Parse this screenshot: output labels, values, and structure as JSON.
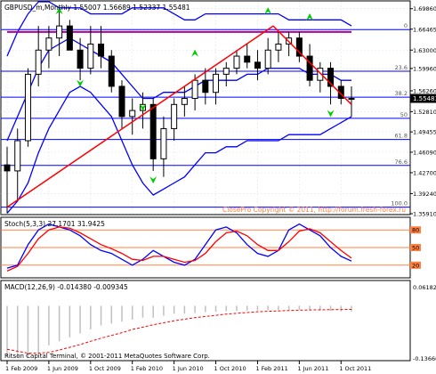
{
  "window": {
    "symbol_header": "GBPUSD_m,Monthly  1.55007 1.56689 1.52337 1.55481",
    "price_badge": "1.55481",
    "watermark": "ClosePro Copyright © 2011, http://forum.fresh-forex.ru",
    "footer": "Ritson Capital Terminal, © 2001-2011 MetaQuotes Software Corp.",
    "stoch_label": "Stoch(5,3,3) 27.1701 31.9425",
    "macd_label": "MACD(12,26,9) -0.014380 -0.009345",
    "macd_top_value": "0.061823",
    "macd_bottom_value": "-0.13660"
  },
  "colors": {
    "candle": "#000000",
    "bollinger": "#0000ff",
    "trendline": "#ff0000",
    "ma": "#aa00aa",
    "fib": "#0000ff",
    "fractal": "#00cc00",
    "stoch_main": "#0000ff",
    "stoch_signal": "#ff0000",
    "stoch_levels": "#ff8040",
    "macd_hist": "#c0c0c0",
    "macd_signal": "#ff0000"
  },
  "chart_data": [
    {
      "type": "candlestick",
      "ylim": [
        1.3591,
        1.71
      ],
      "y_ticks": [
        "1.69860",
        "1.66465",
        "1.63000",
        "1.59960",
        "1.56260",
        "1.52810",
        "1.49455",
        "1.46090",
        "1.42700",
        "1.39240",
        "1.35910"
      ],
      "x_ticks": [
        "1 Feb 2009",
        "1 Jun 2009",
        "1 Oct 2009",
        "1 Feb 2010",
        "1 Jun 2010",
        "1 Oct 2010",
        "1 Feb 2011",
        "1 Jun 2011",
        "1 Oct 2011"
      ],
      "fib_levels": [
        {
          "label": "0",
          "value": 1.664
        },
        {
          "label": "23.6",
          "value": 1.595
        },
        {
          "label": "38.2",
          "value": 1.552
        },
        {
          "label": "50",
          "value": 1.517
        },
        {
          "label": "61.8",
          "value": 1.482
        },
        {
          "label": "76.6",
          "value": 1.439
        },
        {
          "label": "100.0",
          "value": 1.37
        }
      ],
      "candles": [
        {
          "o": 1.44,
          "h": 1.47,
          "l": 1.36,
          "c": 1.43
        },
        {
          "o": 1.43,
          "h": 1.5,
          "l": 1.38,
          "c": 1.48
        },
        {
          "o": 1.48,
          "h": 1.6,
          "l": 1.47,
          "c": 1.59
        },
        {
          "o": 1.59,
          "h": 1.67,
          "l": 1.57,
          "c": 1.63
        },
        {
          "o": 1.63,
          "h": 1.67,
          "l": 1.6,
          "c": 1.65
        },
        {
          "o": 1.65,
          "h": 1.7,
          "l": 1.62,
          "c": 1.67
        },
        {
          "o": 1.67,
          "h": 1.68,
          "l": 1.63,
          "c": 1.63
        },
        {
          "o": 1.63,
          "h": 1.65,
          "l": 1.58,
          "c": 1.6
        },
        {
          "o": 1.6,
          "h": 1.67,
          "l": 1.59,
          "c": 1.64
        },
        {
          "o": 1.64,
          "h": 1.67,
          "l": 1.6,
          "c": 1.62
        },
        {
          "o": 1.62,
          "h": 1.63,
          "l": 1.56,
          "c": 1.57
        },
        {
          "o": 1.57,
          "h": 1.58,
          "l": 1.5,
          "c": 1.52
        },
        {
          "o": 1.52,
          "h": 1.55,
          "l": 1.49,
          "c": 1.53
        },
        {
          "o": 1.53,
          "h": 1.56,
          "l": 1.5,
          "c": 1.54
        },
        {
          "o": 1.54,
          "h": 1.55,
          "l": 1.43,
          "c": 1.45
        },
        {
          "o": 1.45,
          "h": 1.52,
          "l": 1.42,
          "c": 1.5
        },
        {
          "o": 1.5,
          "h": 1.55,
          "l": 1.48,
          "c": 1.54
        },
        {
          "o": 1.54,
          "h": 1.57,
          "l": 1.52,
          "c": 1.55
        },
        {
          "o": 1.55,
          "h": 1.59,
          "l": 1.53,
          "c": 1.58
        },
        {
          "o": 1.58,
          "h": 1.6,
          "l": 1.54,
          "c": 1.56
        },
        {
          "o": 1.56,
          "h": 1.6,
          "l": 1.54,
          "c": 1.59
        },
        {
          "o": 1.59,
          "h": 1.61,
          "l": 1.57,
          "c": 1.6
        },
        {
          "o": 1.6,
          "h": 1.63,
          "l": 1.59,
          "c": 1.62
        },
        {
          "o": 1.62,
          "h": 1.64,
          "l": 1.6,
          "c": 1.61
        },
        {
          "o": 1.61,
          "h": 1.63,
          "l": 1.58,
          "c": 1.6
        },
        {
          "o": 1.6,
          "h": 1.65,
          "l": 1.59,
          "c": 1.63
        },
        {
          "o": 1.63,
          "h": 1.66,
          "l": 1.61,
          "c": 1.64
        },
        {
          "o": 1.64,
          "h": 1.66,
          "l": 1.62,
          "c": 1.65
        },
        {
          "o": 1.65,
          "h": 1.66,
          "l": 1.61,
          "c": 1.62
        },
        {
          "o": 1.62,
          "h": 1.64,
          "l": 1.57,
          "c": 1.58
        },
        {
          "o": 1.58,
          "h": 1.61,
          "l": 1.56,
          "c": 1.6
        },
        {
          "o": 1.6,
          "h": 1.61,
          "l": 1.54,
          "c": 1.57
        },
        {
          "o": 1.57,
          "h": 1.58,
          "l": 1.54,
          "c": 1.55
        },
        {
          "o": 1.55,
          "h": 1.57,
          "l": 1.52,
          "c": 1.55
        }
      ],
      "bollinger_upper": [
        1.62,
        1.66,
        1.69,
        1.71,
        1.71,
        1.7,
        1.7,
        1.7,
        1.69,
        1.69,
        1.69,
        1.69,
        1.7,
        1.7,
        1.7,
        1.7,
        1.69,
        1.68,
        1.68,
        1.69,
        1.69,
        1.69,
        1.69,
        1.69,
        1.69,
        1.69,
        1.69,
        1.68,
        1.68,
        1.68,
        1.68,
        1.68,
        1.68,
        1.67
      ],
      "bollinger_middle": [
        1.48,
        1.52,
        1.56,
        1.6,
        1.63,
        1.64,
        1.65,
        1.64,
        1.63,
        1.62,
        1.61,
        1.59,
        1.57,
        1.55,
        1.55,
        1.56,
        1.56,
        1.56,
        1.57,
        1.58,
        1.58,
        1.58,
        1.58,
        1.59,
        1.59,
        1.6,
        1.6,
        1.6,
        1.6,
        1.59,
        1.59,
        1.59,
        1.58,
        1.58
      ],
      "bollinger_lower": [
        1.36,
        1.38,
        1.41,
        1.46,
        1.5,
        1.53,
        1.56,
        1.57,
        1.56,
        1.54,
        1.52,
        1.48,
        1.44,
        1.41,
        1.39,
        1.4,
        1.41,
        1.42,
        1.44,
        1.46,
        1.46,
        1.47,
        1.47,
        1.48,
        1.48,
        1.48,
        1.48,
        1.49,
        1.49,
        1.49,
        1.49,
        1.5,
        1.51,
        1.52
      ],
      "ma_line": [
        1.66,
        1.66,
        1.66,
        1.66,
        1.66,
        1.66,
        1.66,
        1.66,
        1.66,
        1.66,
        1.66,
        1.66,
        1.66,
        1.66,
        1.66,
        1.66,
        1.66,
        1.66,
        1.66,
        1.66,
        1.66,
        1.66,
        1.66,
        1.66,
        1.66,
        1.66,
        1.66,
        1.66,
        1.66,
        1.66,
        1.66,
        1.66,
        1.66,
        1.66
      ],
      "trendlines": [
        {
          "from": {
            "i": 0,
            "v": 1.37
          },
          "to": {
            "i": 25.5,
            "v": 1.67
          }
        },
        {
          "from": {
            "i": 25.5,
            "v": 1.67
          },
          "to": {
            "i": 33,
            "v": 1.54
          }
        }
      ],
      "fractals_up": [
        {
          "i": 5,
          "v": 1.695
        },
        {
          "i": 18,
          "v": 1.625
        },
        {
          "i": 25,
          "v": 1.695
        },
        {
          "i": 29,
          "v": 1.685
        }
      ],
      "fractals_down": [
        {
          "i": 7,
          "v": 1.575
        },
        {
          "i": 13,
          "v": 1.535
        },
        {
          "i": 14,
          "v": 1.415
        },
        {
          "i": 31,
          "v": 1.525
        }
      ]
    },
    {
      "type": "line",
      "name": "Stoch(5,3,3)",
      "ylim": [
        0,
        100
      ],
      "levels": [
        80,
        50,
        20
      ],
      "main": [
        15,
        20,
        55,
        80,
        90,
        85,
        80,
        70,
        55,
        45,
        40,
        30,
        20,
        30,
        45,
        35,
        25,
        20,
        30,
        55,
        80,
        85,
        75,
        55,
        40,
        35,
        45,
        80,
        90,
        80,
        70,
        50,
        35,
        27
      ],
      "signal": [
        10,
        18,
        40,
        65,
        80,
        85,
        83,
        75,
        65,
        55,
        48,
        40,
        30,
        28,
        35,
        35,
        30,
        25,
        28,
        40,
        60,
        75,
        78,
        70,
        55,
        45,
        45,
        60,
        78,
        82,
        75,
        60,
        45,
        32
      ]
    },
    {
      "type": "bar",
      "name": "MACD(12,26,9)",
      "ylim": [
        -0.1366,
        0.061823
      ],
      "histogram": [
        -0.13,
        -0.13,
        -0.13,
        -0.12,
        -0.1,
        -0.09,
        -0.08,
        -0.07,
        -0.06,
        -0.05,
        -0.045,
        -0.04,
        -0.035,
        -0.03,
        -0.03,
        -0.025,
        -0.02,
        -0.02,
        -0.018,
        -0.016,
        -0.015,
        -0.014,
        -0.013,
        -0.012,
        -0.012,
        -0.011,
        -0.011,
        -0.01,
        -0.01,
        -0.011,
        -0.012,
        -0.013,
        -0.014,
        -0.0144
      ],
      "signal": [
        -0.11,
        -0.115,
        -0.12,
        -0.12,
        -0.118,
        -0.112,
        -0.105,
        -0.098,
        -0.09,
        -0.082,
        -0.075,
        -0.068,
        -0.06,
        -0.054,
        -0.048,
        -0.043,
        -0.038,
        -0.034,
        -0.03,
        -0.027,
        -0.024,
        -0.021,
        -0.019,
        -0.017,
        -0.015,
        -0.014,
        -0.013,
        -0.012,
        -0.011,
        -0.0105,
        -0.01,
        -0.0098,
        -0.0095,
        -0.0093
      ]
    }
  ]
}
